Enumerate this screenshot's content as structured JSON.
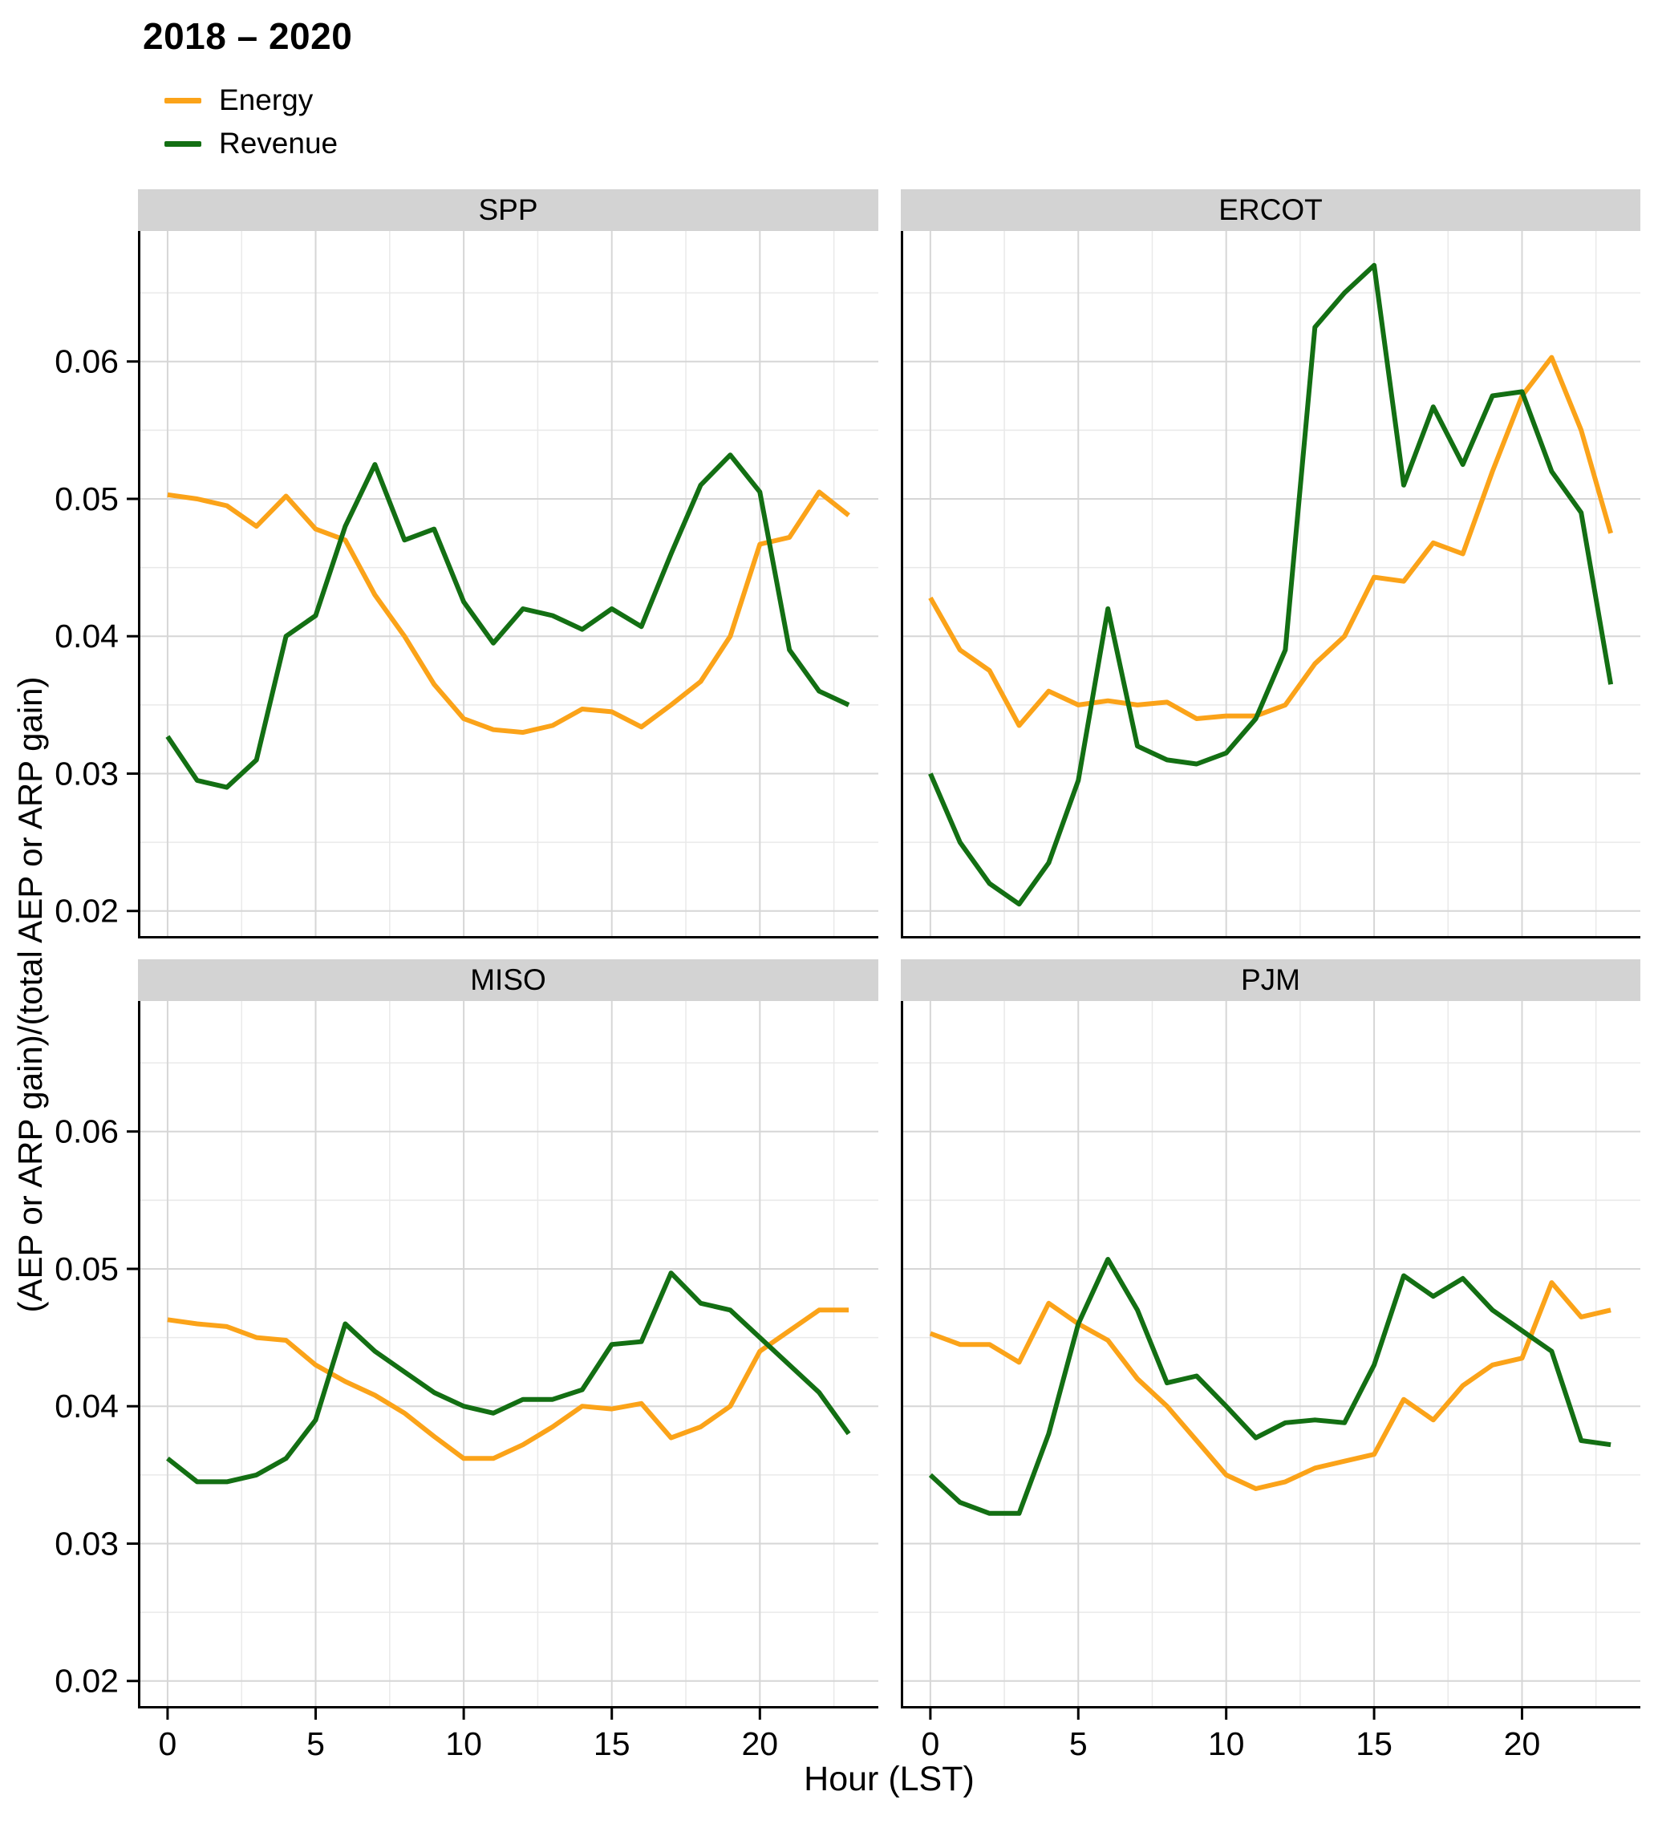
{
  "title": "2018 – 2020",
  "legend": {
    "items": [
      {
        "label": "Energy",
        "color": "#FBA319"
      },
      {
        "label": "Revenue",
        "color": "#136F13"
      }
    ]
  },
  "axis": {
    "x_label": "Hour (LST)",
    "y_label": "(AEP or ARP gain)/(total AEP or ARP gain)",
    "x_ticks": [
      0,
      5,
      10,
      15,
      20
    ],
    "x_tick_labels": [
      "0",
      "5",
      "10",
      "15",
      "20"
    ],
    "x_minor_ticks": [
      2.5,
      7.5,
      12.5,
      17.5,
      22.5
    ],
    "y_ticks": [
      0.02,
      0.03,
      0.04,
      0.05,
      0.06
    ],
    "y_tick_labels": [
      "0.02",
      "0.03",
      "0.04",
      "0.05",
      "0.06"
    ],
    "y_minor_ticks": [
      0.025,
      0.035,
      0.045,
      0.055,
      0.065
    ],
    "x_range": [
      -1,
      24
    ],
    "y_range": [
      0.018,
      0.0695
    ],
    "grid": true,
    "grid_major_color": "#d6d6d6",
    "grid_minor_color": "#e9e9e9",
    "axis_line_color": "#000000"
  },
  "chart_data": {
    "type": "line",
    "x": [
      0,
      1,
      2,
      3,
      4,
      5,
      6,
      7,
      8,
      9,
      10,
      11,
      12,
      13,
      14,
      15,
      16,
      17,
      18,
      19,
      20,
      21,
      22,
      23
    ],
    "panels": [
      {
        "name": "SPP",
        "series": [
          {
            "name": "Energy",
            "values": [
              0.0503,
              0.05,
              0.0495,
              0.048,
              0.0502,
              0.0478,
              0.047,
              0.043,
              0.04,
              0.0365,
              0.034,
              0.0332,
              0.033,
              0.0335,
              0.0347,
              0.0345,
              0.0334,
              0.035,
              0.0367,
              0.04,
              0.0467,
              0.0472,
              0.0505,
              0.0488
            ]
          },
          {
            "name": "Revenue",
            "values": [
              0.0327,
              0.0295,
              0.029,
              0.031,
              0.04,
              0.0415,
              0.048,
              0.0525,
              0.047,
              0.0478,
              0.0425,
              0.0395,
              0.042,
              0.0415,
              0.0405,
              0.042,
              0.0407,
              0.046,
              0.051,
              0.0532,
              0.0505,
              0.039,
              0.036,
              0.035
            ]
          }
        ]
      },
      {
        "name": "ERCOT",
        "series": [
          {
            "name": "Energy",
            "values": [
              0.0428,
              0.039,
              0.0375,
              0.0335,
              0.036,
              0.035,
              0.0353,
              0.035,
              0.0352,
              0.034,
              0.0342,
              0.0342,
              0.035,
              0.038,
              0.04,
              0.0443,
              0.044,
              0.0468,
              0.046,
              0.052,
              0.0575,
              0.0603,
              0.055,
              0.0475
            ]
          },
          {
            "name": "Revenue",
            "values": [
              0.03,
              0.025,
              0.022,
              0.0205,
              0.0235,
              0.0295,
              0.042,
              0.032,
              0.031,
              0.0307,
              0.0315,
              0.034,
              0.039,
              0.0625,
              0.065,
              0.067,
              0.051,
              0.0567,
              0.0525,
              0.0575,
              0.0578,
              0.052,
              0.049,
              0.0365
            ]
          }
        ]
      },
      {
        "name": "MISO",
        "series": [
          {
            "name": "Energy",
            "values": [
              0.0463,
              0.046,
              0.0458,
              0.045,
              0.0448,
              0.043,
              0.0418,
              0.0408,
              0.0395,
              0.0378,
              0.0362,
              0.0362,
              0.0372,
              0.0385,
              0.04,
              0.0398,
              0.0402,
              0.0377,
              0.0385,
              0.04,
              0.044,
              0.0455,
              0.047,
              0.047
            ]
          },
          {
            "name": "Revenue",
            "values": [
              0.0362,
              0.0345,
              0.0345,
              0.035,
              0.0362,
              0.039,
              0.046,
              0.044,
              0.0425,
              0.041,
              0.04,
              0.0395,
              0.0405,
              0.0405,
              0.0412,
              0.0445,
              0.0447,
              0.0497,
              0.0475,
              0.047,
              0.045,
              0.043,
              0.041,
              0.038
            ]
          }
        ]
      },
      {
        "name": "PJM",
        "series": [
          {
            "name": "Energy",
            "values": [
              0.0453,
              0.0445,
              0.0445,
              0.0432,
              0.0475,
              0.046,
              0.0448,
              0.042,
              0.04,
              0.0375,
              0.035,
              0.034,
              0.0345,
              0.0355,
              0.036,
              0.0365,
              0.0405,
              0.039,
              0.0415,
              0.043,
              0.0435,
              0.049,
              0.0465,
              0.047
            ]
          },
          {
            "name": "Revenue",
            "values": [
              0.035,
              0.033,
              0.0322,
              0.0322,
              0.038,
              0.046,
              0.0507,
              0.047,
              0.0417,
              0.0422,
              0.04,
              0.0377,
              0.0388,
              0.039,
              0.0388,
              0.043,
              0.0495,
              0.048,
              0.0493,
              0.047,
              0.0455,
              0.044,
              0.0375,
              0.0372
            ]
          }
        ]
      }
    ]
  }
}
